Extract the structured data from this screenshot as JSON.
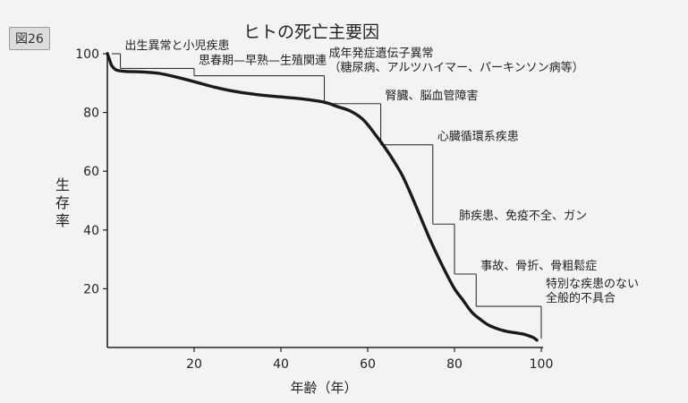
{
  "figure_label": "図26",
  "chart_data": {
    "type": "line",
    "title": "ヒトの死亡主要因",
    "xlabel": "年齢（年）",
    "ylabel": "生存率",
    "xlim": [
      0,
      100
    ],
    "ylim": [
      0,
      100
    ],
    "x_ticks": [
      20,
      40,
      60,
      80,
      100
    ],
    "y_ticks": [
      20,
      40,
      60,
      80,
      100
    ],
    "grid": false,
    "series": [
      {
        "x": [
          0,
          0.5,
          1,
          2,
          4,
          8,
          12,
          16,
          20,
          25,
          30,
          35,
          40,
          45,
          50,
          53,
          56,
          59,
          62,
          64,
          66,
          68,
          70,
          72,
          74,
          76,
          78,
          80,
          82,
          84,
          86,
          88,
          90,
          92,
          94,
          96,
          98,
          99
        ],
        "y": [
          100,
          98,
          96,
          94.5,
          94,
          93.8,
          93.3,
          92,
          90.5,
          88.5,
          87,
          86,
          85.3,
          84.6,
          83.5,
          82,
          80.5,
          77.5,
          72,
          68,
          63.5,
          58.5,
          52,
          45,
          38,
          31.5,
          25.5,
          20,
          16,
          12,
          9.5,
          7.5,
          6.3,
          5.5,
          5,
          4.5,
          3.5,
          2.5
        ]
      }
    ],
    "annotations": [
      {
        "lines": [
          "出生異常と小児疾患"
        ],
        "x_start": 1,
        "x_end": 3,
        "y": 100
      },
      {
        "lines": [
          "思春期—早熟—生殖関連"
        ],
        "x_start": 3,
        "x_end": 20,
        "y": 95
      },
      {
        "lines": [
          "成年発症遺伝子異常",
          "（糖尿病、アルツハイマー、パーキンソン病等）"
        ],
        "x_start": 20,
        "x_end": 50,
        "y": 92.5
      },
      {
        "lines": [
          "腎臓、脳血管障害"
        ],
        "x_start": 50,
        "x_end": 63,
        "y": 83
      },
      {
        "lines": [
          "心臓循環系疾患"
        ],
        "x_start": 63,
        "x_end": 75,
        "y": 69
      },
      {
        "lines": [
          "肺疾患、免疫不全、ガン"
        ],
        "x_start": 75,
        "x_end": 80,
        "y": 42
      },
      {
        "lines": [
          "事故、骨折、骨粗鬆症"
        ],
        "x_start": 80,
        "x_end": 85,
        "y": 25
      },
      {
        "lines": [
          "特別な疾患のない",
          "全般的不具合"
        ],
        "x_start": 85,
        "x_end": 100,
        "y": 14
      }
    ]
  }
}
